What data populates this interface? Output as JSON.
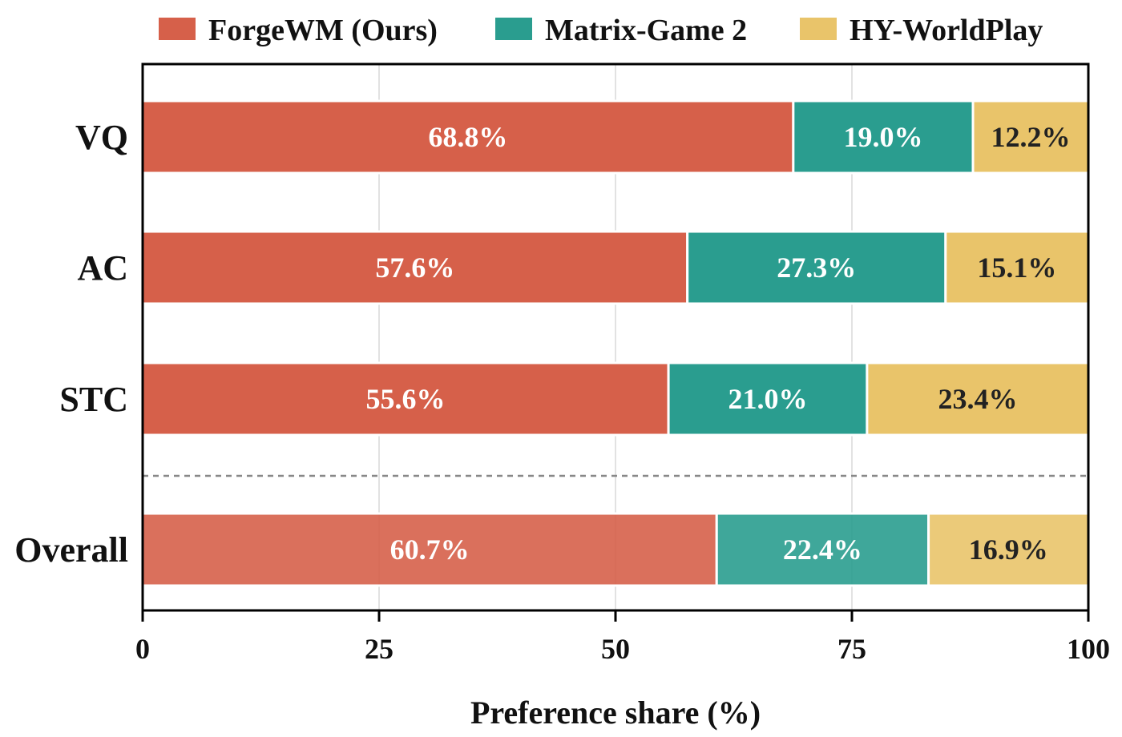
{
  "chart_data": {
    "type": "bar",
    "orientation": "horizontal",
    "stacked": true,
    "categories": [
      "VQ",
      "AC",
      "STC",
      "Overall"
    ],
    "series": [
      {
        "name": "ForgeWM (Ours)",
        "values": [
          68.8,
          57.6,
          55.6,
          60.7
        ],
        "labels": [
          "68.8%",
          "57.6%",
          "55.6%",
          "60.7%"
        ],
        "color": "#d6604a",
        "label_color": "#ffffff"
      },
      {
        "name": "Matrix-Game 2",
        "values": [
          19.0,
          27.3,
          21.0,
          22.4
        ],
        "labels": [
          "19.0%",
          "27.3%",
          "21.0%",
          "22.4%"
        ],
        "color": "#2a9d8f",
        "label_color": "#ffffff"
      },
      {
        "name": "HY-WorldPlay",
        "values": [
          12.2,
          15.1,
          23.4,
          16.9
        ],
        "labels": [
          "12.2%",
          "15.1%",
          "23.4%",
          "16.9%"
        ],
        "color": "#e9c46a",
        "label_color": "#222222"
      }
    ],
    "xlabel": "Preference share (%)",
    "ylabel": "",
    "title": "",
    "xlim": [
      0,
      100
    ],
    "xticks": [
      0,
      25,
      50,
      75,
      100
    ],
    "xtick_labels": [
      "0",
      "25",
      "50",
      "75",
      "100"
    ],
    "grid": "vertical",
    "legend": "top",
    "separator": "dashed line between STC and Overall"
  }
}
